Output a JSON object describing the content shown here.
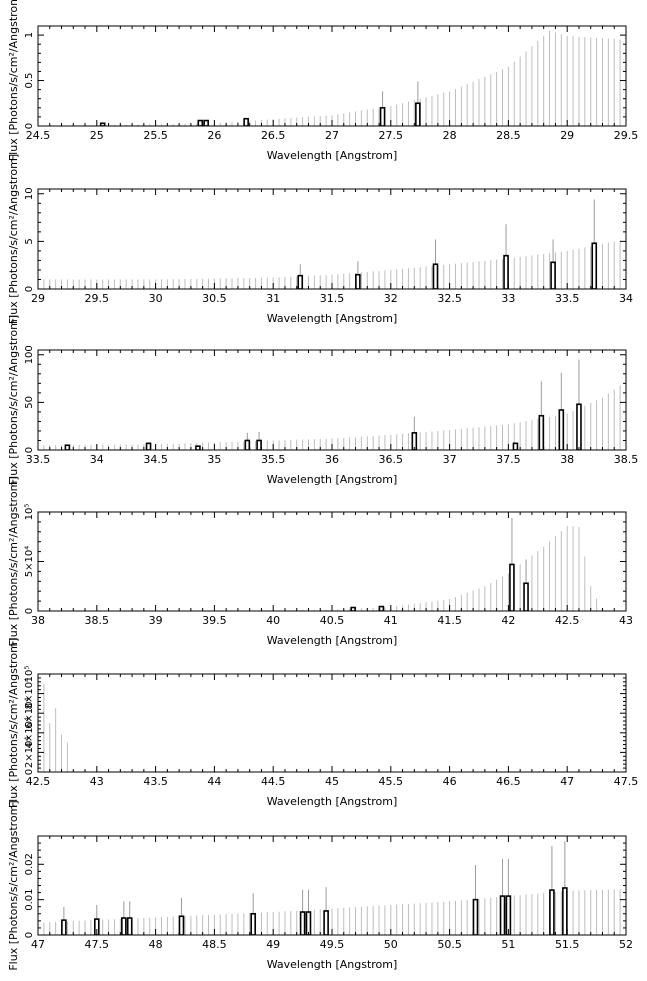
{
  "chart_data": [
    {
      "type": "bar",
      "xlabel": "Wavelength [Angstrom]",
      "ylabel": "Flux [Photons/s/cm²/Angstrom]",
      "xlim": [
        24.5,
        29.5
      ],
      "ylim": [
        0,
        1.1
      ],
      "x_ticks": [
        "24.5",
        "25",
        "25.5",
        "26",
        "26.5",
        "27",
        "27.5",
        "28",
        "28.5",
        "29",
        "29.5"
      ],
      "y_ticks": [
        "0",
        "0.5",
        "1"
      ],
      "grid": false,
      "upper_lines": [
        {
          "x": 25.05,
          "y": 0.03
        },
        {
          "x": 25.88,
          "y": 0.06
        },
        {
          "x": 25.93,
          "y": 0.06
        },
        {
          "x": 26.27,
          "y": 0.08
        },
        {
          "x": 27.43,
          "y": 0.38
        },
        {
          "x": 27.73,
          "y": 0.49
        }
      ],
      "bars": [
        {
          "x": 25.05,
          "y": 0.03
        },
        {
          "x": 25.88,
          "y": 0.06
        },
        {
          "x": 25.93,
          "y": 0.06
        },
        {
          "x": 26.27,
          "y": 0.08
        },
        {
          "x": 27.43,
          "y": 0.2
        },
        {
          "x": 27.73,
          "y": 0.25
        }
      ],
      "continuum": {
        "x_start": 24.5,
        "x_end": 29.5,
        "step": 0.05,
        "profile": [
          [
            24.5,
            0.0
          ],
          [
            26.0,
            0.03
          ],
          [
            27.0,
            0.12
          ],
          [
            27.5,
            0.22
          ],
          [
            28.0,
            0.38
          ],
          [
            28.5,
            0.65
          ],
          [
            28.85,
            1.05
          ],
          [
            29.0,
            0.99
          ],
          [
            29.5,
            0.95
          ]
        ]
      }
    },
    {
      "type": "bar",
      "xlabel": "Wavelength [Angstrom]",
      "ylabel": "Flux [Photons/s/cm²/Angstrom]",
      "xlim": [
        29,
        34
      ],
      "ylim": [
        0,
        10.5
      ],
      "x_ticks": [
        "29",
        "29.5",
        "30",
        "30.5",
        "31",
        "31.5",
        "32",
        "32.5",
        "33",
        "33.5",
        "34"
      ],
      "y_ticks": [
        "0",
        "5",
        "10"
      ],
      "grid": false,
      "upper_lines": [
        {
          "x": 31.23,
          "y": 2.6
        },
        {
          "x": 31.72,
          "y": 2.9
        },
        {
          "x": 32.38,
          "y": 5.2
        },
        {
          "x": 32.98,
          "y": 6.8
        },
        {
          "x": 33.38,
          "y": 5.2
        },
        {
          "x": 33.73,
          "y": 9.4
        }
      ],
      "bars": [
        {
          "x": 31.23,
          "y": 1.4
        },
        {
          "x": 31.72,
          "y": 1.5
        },
        {
          "x": 32.38,
          "y": 2.6
        },
        {
          "x": 32.98,
          "y": 3.5
        },
        {
          "x": 33.38,
          "y": 2.8
        },
        {
          "x": 33.73,
          "y": 4.8
        }
      ],
      "continuum": {
        "x_start": 29.0,
        "x_end": 34.0,
        "step": 0.05,
        "profile": [
          [
            29.0,
            1.0
          ],
          [
            30.0,
            1.0
          ],
          [
            31.0,
            1.2
          ],
          [
            31.5,
            1.5
          ],
          [
            32.0,
            2.0
          ],
          [
            32.5,
            2.6
          ],
          [
            33.0,
            3.2
          ],
          [
            33.5,
            4.0
          ],
          [
            34.0,
            5.2
          ]
        ]
      }
    },
    {
      "type": "bar",
      "xlabel": "Wavelength [Angstrom]",
      "ylabel": "Flux [Photons/s/cm²/Angstrom]",
      "xlim": [
        33.5,
        38.5
      ],
      "ylim": [
        0,
        105
      ],
      "x_ticks": [
        "33.5",
        "34",
        "34.5",
        "35",
        "35.5",
        "36",
        "36.5",
        "37",
        "37.5",
        "38",
        "38.5"
      ],
      "y_ticks": [
        "0",
        "50",
        "100"
      ],
      "grid": false,
      "upper_lines": [
        {
          "x": 35.28,
          "y": 18
        },
        {
          "x": 35.38,
          "y": 19
        },
        {
          "x": 36.7,
          "y": 35
        },
        {
          "x": 37.78,
          "y": 72
        },
        {
          "x": 37.95,
          "y": 81
        },
        {
          "x": 38.1,
          "y": 95
        }
      ],
      "bars": [
        {
          "x": 33.75,
          "y": 5
        },
        {
          "x": 34.44,
          "y": 7
        },
        {
          "x": 34.86,
          "y": 4
        },
        {
          "x": 35.28,
          "y": 10
        },
        {
          "x": 35.38,
          "y": 10
        },
        {
          "x": 36.7,
          "y": 18
        },
        {
          "x": 37.56,
          "y": 7
        },
        {
          "x": 37.78,
          "y": 36
        },
        {
          "x": 37.95,
          "y": 42
        },
        {
          "x": 38.1,
          "y": 48
        }
      ],
      "continuum": {
        "x_start": 33.5,
        "x_end": 38.5,
        "step": 0.05,
        "profile": [
          [
            33.5,
            5
          ],
          [
            34.5,
            6
          ],
          [
            35.5,
            10
          ],
          [
            36.0,
            12
          ],
          [
            36.5,
            16
          ],
          [
            37.0,
            21
          ],
          [
            37.5,
            27
          ],
          [
            38.0,
            38
          ],
          [
            38.3,
            55
          ],
          [
            38.5,
            72
          ]
        ]
      }
    },
    {
      "type": "bar",
      "xlabel": "Wavelength [Angstrom]",
      "ylabel": "Flux [Photons/s/cm²/Angstrom]",
      "xlim": [
        38,
        43
      ],
      "ylim": [
        0,
        100000
      ],
      "x_ticks": [
        "38",
        "38.5",
        "39",
        "39.5",
        "40",
        "40.5",
        "41",
        "41.5",
        "42",
        "42.5",
        "43"
      ],
      "y_ticks": [
        "0",
        "5×10⁴",
        "10⁵"
      ],
      "grid": false,
      "upper_lines": [
        {
          "x": 42.03,
          "y": 94000
        },
        {
          "x": 42.15,
          "y": 52000
        }
      ],
      "bars": [
        {
          "x": 40.68,
          "y": 3500
        },
        {
          "x": 40.92,
          "y": 4500
        },
        {
          "x": 42.03,
          "y": 47000
        },
        {
          "x": 42.15,
          "y": 28000
        }
      ],
      "continuum": {
        "x_start": 38.0,
        "x_end": 43.0,
        "step": 0.05,
        "profile": [
          [
            38.0,
            0
          ],
          [
            40.0,
            500
          ],
          [
            40.5,
            1500
          ],
          [
            41.0,
            4000
          ],
          [
            41.5,
            12000
          ],
          [
            41.8,
            25000
          ],
          [
            42.0,
            38000
          ],
          [
            42.3,
            65000
          ],
          [
            42.5,
            86000
          ],
          [
            42.6,
            85000
          ],
          [
            42.7,
            25000
          ],
          [
            42.8,
            0
          ],
          [
            43.0,
            0
          ]
        ]
      }
    },
    {
      "type": "bar",
      "xlabel": "Wavelength [Angstrom]",
      "ylabel": "Flux [Photons/s/cm²/Angstrom]",
      "xlim": [
        42.5,
        47.5
      ],
      "ylim": [
        0,
        100000
      ],
      "x_ticks": [
        "42.5",
        "43",
        "43.5",
        "44",
        "44.5",
        "45",
        "45.5",
        "46",
        "46.5",
        "47",
        "47.5"
      ],
      "y_ticks": [
        "0",
        "2×10⁴",
        "4×10⁴",
        "6×10⁴",
        "8×10⁴",
        "10⁵"
      ],
      "grid": false,
      "upper_lines": [],
      "bars": [],
      "continuum": {
        "x_start": 42.5,
        "x_end": 43.2,
        "step": 0.05,
        "profile": [
          [
            42.5,
            85000
          ],
          [
            42.55,
            90000
          ],
          [
            42.6,
            50000
          ],
          [
            42.65,
            65000
          ],
          [
            42.7,
            38000
          ],
          [
            42.75,
            30000
          ],
          [
            42.8,
            0
          ],
          [
            43.2,
            0
          ]
        ]
      }
    },
    {
      "type": "bar",
      "xlabel": "Wavelength [Angstrom]",
      "ylabel": "Flux [Photons/s/cm²/Angstrom]",
      "xlim": [
        47,
        52
      ],
      "ylim": [
        0,
        0.028
      ],
      "x_ticks": [
        "47",
        "47.5",
        "48",
        "48.5",
        "49",
        "49.5",
        "50",
        "50.5",
        "51",
        "51.5",
        "52"
      ],
      "y_ticks": [
        "0",
        "0.01",
        "0.02"
      ],
      "grid": false,
      "upper_lines": [
        {
          "x": 47.22,
          "y": 0.008
        },
        {
          "x": 47.5,
          "y": 0.0085
        },
        {
          "x": 47.73,
          "y": 0.0095
        },
        {
          "x": 47.78,
          "y": 0.0095
        },
        {
          "x": 48.22,
          "y": 0.0105
        },
        {
          "x": 48.83,
          "y": 0.0118
        },
        {
          "x": 49.25,
          "y": 0.0128
        },
        {
          "x": 49.3,
          "y": 0.0128
        },
        {
          "x": 49.45,
          "y": 0.0135
        },
        {
          "x": 50.72,
          "y": 0.0198
        },
        {
          "x": 50.95,
          "y": 0.0215
        },
        {
          "x": 51.0,
          "y": 0.0215
        },
        {
          "x": 51.37,
          "y": 0.0252
        },
        {
          "x": 51.48,
          "y": 0.0265
        }
      ],
      "bars": [
        {
          "x": 47.22,
          "y": 0.0042
        },
        {
          "x": 47.5,
          "y": 0.0045
        },
        {
          "x": 47.73,
          "y": 0.0048
        },
        {
          "x": 47.78,
          "y": 0.0048
        },
        {
          "x": 48.22,
          "y": 0.0053
        },
        {
          "x": 48.83,
          "y": 0.006
        },
        {
          "x": 49.25,
          "y": 0.0065
        },
        {
          "x": 49.3,
          "y": 0.0065
        },
        {
          "x": 49.45,
          "y": 0.0068
        },
        {
          "x": 50.72,
          "y": 0.01
        },
        {
          "x": 50.95,
          "y": 0.011
        },
        {
          "x": 51.0,
          "y": 0.011
        },
        {
          "x": 51.37,
          "y": 0.0127
        },
        {
          "x": 51.48,
          "y": 0.0133
        }
      ],
      "continuum": {
        "x_start": 47.0,
        "x_end": 52.0,
        "step": 0.05,
        "profile": [
          [
            47.0,
            0.0035
          ],
          [
            48.0,
            0.005
          ],
          [
            49.0,
            0.0065
          ],
          [
            50.0,
            0.0085
          ],
          [
            50.5,
            0.0095
          ],
          [
            51.0,
            0.011
          ],
          [
            51.5,
            0.0125
          ],
          [
            52.0,
            0.013
          ]
        ]
      }
    }
  ]
}
